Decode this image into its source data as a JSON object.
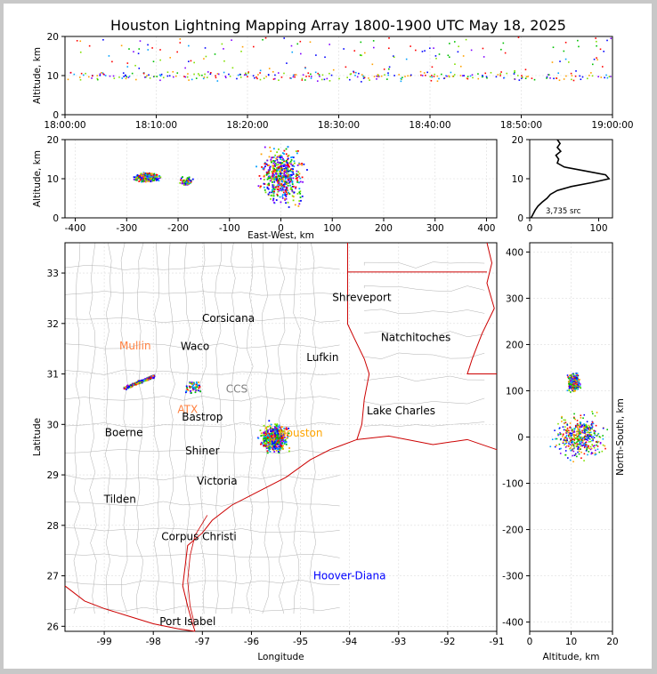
{
  "title": "Houston Lightning Mapping Array 1800-1900 UTC May 18, 2025",
  "chart_data": [
    {
      "panel": "altitude-time",
      "type": "scatter",
      "ylabel": "Altitude, km",
      "xlabel": "",
      "xlim": [
        "18:00:00",
        "19:00:00"
      ],
      "ylim": [
        0,
        20
      ],
      "x_ticks": [
        "18:00:00",
        "18:10:00",
        "18:20:00",
        "18:30:00",
        "18:40:00",
        "18:50:00",
        "19:00:00"
      ],
      "y_ticks": [
        0,
        10,
        20
      ],
      "grid": true,
      "clusters": [
        {
          "x_min": 0,
          "x_max": 60,
          "y_min": 9,
          "y_max": 20
        }
      ]
    },
    {
      "panel": "altitude-east-west",
      "type": "scatter",
      "xlabel": "East-West, km",
      "ylabel": "Altitude, km",
      "xlim": [
        -420,
        420
      ],
      "ylim": [
        0,
        20
      ],
      "x_ticks": [
        -400,
        -300,
        -200,
        -100,
        0,
        100,
        200,
        300,
        400
      ],
      "y_ticks": [
        0,
        10,
        20
      ],
      "grid": true,
      "clusters": [
        {
          "x": -262,
          "y": 10.5,
          "dx": 30,
          "dy": 1.5
        },
        {
          "x": -185,
          "y": 9.5,
          "dx": 15,
          "dy": 1.5
        },
        {
          "x": 0,
          "y": 11,
          "dx": 55,
          "dy": 9
        }
      ]
    },
    {
      "panel": "altitude-histogram",
      "type": "line",
      "xlim": [
        0,
        120
      ],
      "ylim": [
        0,
        20
      ],
      "x_ticks": [
        0,
        100
      ],
      "y_ticks": [
        0,
        10,
        20
      ],
      "annotation": "3,735 src",
      "x": [
        2,
        5,
        8,
        12,
        18,
        25,
        30,
        40,
        60,
        90,
        115,
        110,
        80,
        50,
        40,
        42,
        38,
        45,
        40,
        44,
        40
      ],
      "y": [
        0,
        1,
        2,
        3,
        4,
        5,
        6,
        7,
        8,
        9,
        10,
        11,
        12,
        13,
        14,
        15,
        16,
        17,
        18,
        19,
        20
      ]
    },
    {
      "panel": "plan-view",
      "type": "scatter",
      "xlabel": "Longitude",
      "ylabel": "Latitude",
      "xlim": [
        -99.8,
        -91
      ],
      "ylim": [
        25.9,
        33.6
      ],
      "x_ticks": [
        -99,
        -98,
        -97,
        -96,
        -95,
        -94,
        -93,
        -92,
        -91
      ],
      "y_ticks": [
        26,
        27,
        28,
        29,
        30,
        31,
        32,
        33
      ],
      "grid": true,
      "places": [
        {
          "name": "Shreveport",
          "lon": -93.75,
          "lat": 32.52,
          "color": "#000000"
        },
        {
          "name": "Corsicana",
          "lon": -96.47,
          "lat": 32.1,
          "color": "#000000"
        },
        {
          "name": "Natchitoches",
          "lon": -92.65,
          "lat": 31.72,
          "color": "#000000"
        },
        {
          "name": "Mullin",
          "lon": -98.37,
          "lat": 31.56,
          "color": "#ff8040"
        },
        {
          "name": "Waco",
          "lon": -97.15,
          "lat": 31.55,
          "color": "#000000"
        },
        {
          "name": "Lufkin",
          "lon": -94.55,
          "lat": 31.33,
          "color": "#000000"
        },
        {
          "name": "CCS",
          "lon": -96.3,
          "lat": 30.7,
          "color": "#808080"
        },
        {
          "name": "ATX",
          "lon": -97.3,
          "lat": 30.3,
          "color": "#ff8040"
        },
        {
          "name": "Bastrop",
          "lon": -97.0,
          "lat": 30.15,
          "color": "#000000"
        },
        {
          "name": "Lake Charles",
          "lon": -92.95,
          "lat": 30.27,
          "color": "#000000"
        },
        {
          "name": "Boerne",
          "lon": -98.6,
          "lat": 29.84,
          "color": "#000000"
        },
        {
          "name": "Houston",
          "lon": -95.0,
          "lat": 29.83,
          "color": "#ffa500"
        },
        {
          "name": "Shiner",
          "lon": -97.0,
          "lat": 29.48,
          "color": "#000000"
        },
        {
          "name": "Victoria",
          "lon": -96.7,
          "lat": 28.88,
          "color": "#000000"
        },
        {
          "name": "Tilden",
          "lon": -98.68,
          "lat": 28.52,
          "color": "#000000"
        },
        {
          "name": "Corpus Christi",
          "lon": -97.07,
          "lat": 27.78,
          "color": "#000000"
        },
        {
          "name": "Hoover-Diana",
          "lon": -94.0,
          "lat": 27.0,
          "color": "#0000ff"
        },
        {
          "name": "Port Isabel",
          "lon": -97.3,
          "lat": 26.09,
          "color": "#000000"
        }
      ],
      "clusters": [
        {
          "lon": -98.3,
          "lat": 30.85,
          "dx": 0.3,
          "dy": 0.15
        },
        {
          "lon": -97.2,
          "lat": 30.75,
          "dx": 0.2,
          "dy": 0.2
        },
        {
          "lon": -95.55,
          "lat": 29.75,
          "dx": 0.35,
          "dy": 0.35
        }
      ]
    },
    {
      "panel": "north-south-altitude",
      "type": "scatter",
      "xlabel": "Altitude, km",
      "ylabel": "North-South, km",
      "xlim": [
        0,
        20
      ],
      "ylim": [
        -420,
        420
      ],
      "x_ticks": [
        0,
        10,
        20
      ],
      "y_ticks": [
        -400,
        -300,
        -200,
        -100,
        0,
        100,
        200,
        300,
        400
      ],
      "grid": true,
      "clusters": [
        {
          "x": 10.5,
          "y": 120,
          "dx": 2,
          "dy": 25
        },
        {
          "x": 12,
          "y": 0,
          "dx": 8,
          "dy": 60
        }
      ]
    }
  ],
  "colors": {
    "sequence": [
      "#0000ff",
      "#00a0ff",
      "#00c000",
      "#80e000",
      "#ffa000",
      "#ff0000",
      "#8000ff"
    ],
    "state_border": "#cc0000",
    "county_line": "#b0b0b0"
  }
}
